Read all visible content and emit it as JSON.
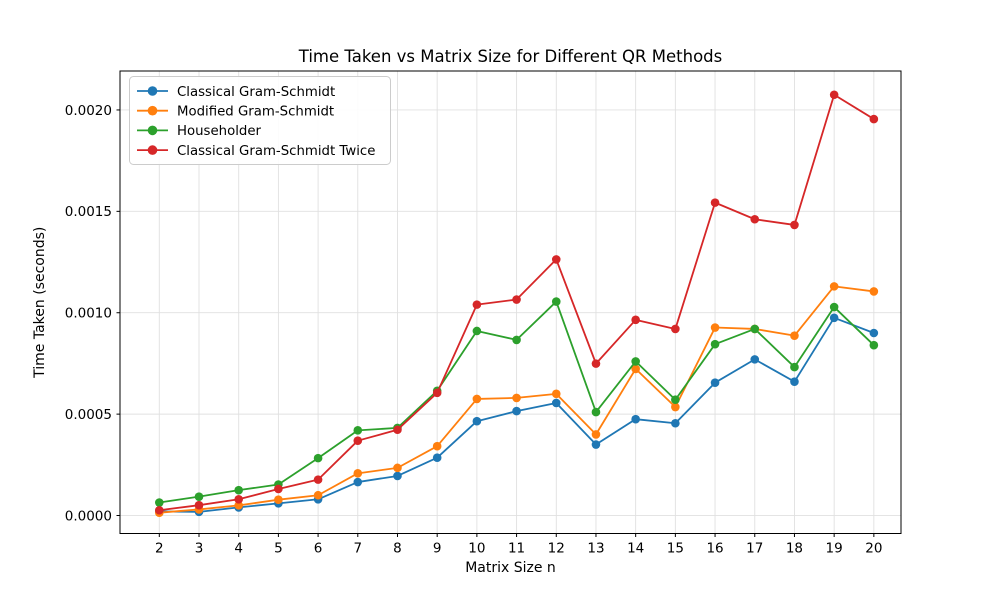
{
  "figure": {
    "background": "#ffffff"
  },
  "chart_data": {
    "type": "line",
    "title": "Time Taken vs Matrix Size for Different QR Methods",
    "xlabel": "Matrix Size n",
    "ylabel": "Time Taken (seconds)",
    "grid": true,
    "grid_color": "#e0e0e0",
    "spine_color": "#000000",
    "legend_position": "upper-left",
    "xlim": [
      1.01,
      20.684
    ],
    "ylim": [
      -8.87e-05,
      0.0021921
    ],
    "xticks": [
      2,
      3,
      4,
      5,
      6,
      7,
      8,
      9,
      10,
      11,
      12,
      13,
      14,
      15,
      16,
      17,
      18,
      19,
      20
    ],
    "xtick_labels": [
      "2",
      "3",
      "4",
      "5",
      "6",
      "7",
      "8",
      "9",
      "10",
      "11",
      "12",
      "13",
      "14",
      "15",
      "16",
      "17",
      "18",
      "19",
      "20"
    ],
    "yticks": [
      0.0,
      0.0005,
      0.001,
      0.0015,
      0.002
    ],
    "ytick_labels": [
      "0.0000",
      "0.0005",
      "0.0010",
      "0.0015",
      "0.0020"
    ],
    "x": [
      2,
      3,
      4,
      5,
      6,
      7,
      8,
      9,
      10,
      11,
      12,
      13,
      14,
      15,
      16,
      17,
      18,
      19,
      20
    ],
    "series": [
      {
        "name": "Classical Gram-Schmidt",
        "color": "#1f77b4",
        "values": [
          2e-05,
          1.8e-05,
          4e-05,
          6e-05,
          8e-05,
          0.000165,
          0.000195,
          0.000285,
          0.000465,
          0.000515,
          0.000555,
          0.00035,
          0.000475,
          0.000455,
          0.000655,
          0.00077,
          0.00066,
          0.000975,
          0.0009
        ]
      },
      {
        "name": "Modified Gram-Schmidt",
        "color": "#ff7f0e",
        "values": [
          1.4e-05,
          3e-05,
          5e-05,
          7.8e-05,
          0.0001,
          0.000208,
          0.000235,
          0.000342,
          0.000575,
          0.00058,
          0.0006,
          0.0004,
          0.000723,
          0.000535,
          0.000927,
          0.00092,
          0.000887,
          0.00113,
          0.001105
        ]
      },
      {
        "name": "Householder",
        "color": "#2ca02c",
        "values": [
          6.4e-05,
          9.3e-05,
          0.000125,
          0.000153,
          0.000283,
          0.00042,
          0.000432,
          0.000615,
          0.00091,
          0.000866,
          0.001055,
          0.00051,
          0.00076,
          0.000571,
          0.000845,
          0.00092,
          0.000732,
          0.001028,
          0.00084
        ]
      },
      {
        "name": "Classical Gram-Schmidt Twice",
        "color": "#d62728",
        "values": [
          2.6e-05,
          5.1e-05,
          8e-05,
          0.000131,
          0.000177,
          0.000369,
          0.000423,
          0.000605,
          0.00104,
          0.001065,
          0.001263,
          0.000749,
          0.000965,
          0.00092,
          0.001543,
          0.001461,
          0.001433,
          0.002075,
          0.001955
        ]
      }
    ]
  }
}
